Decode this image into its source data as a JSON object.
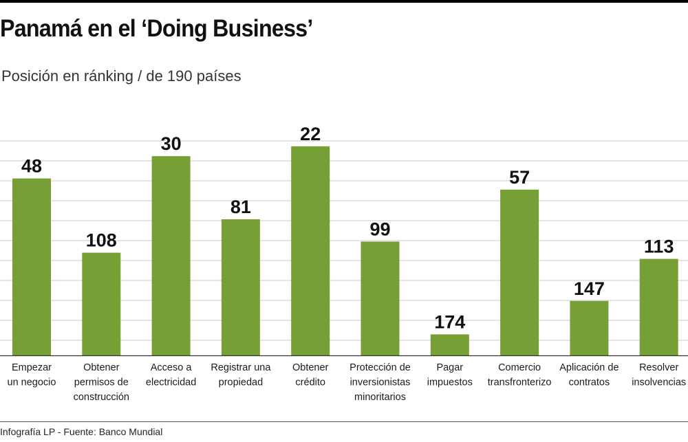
{
  "title": "Panamá en el ‘Doing Business’",
  "subtitle": "Posición en ránking / de 190 países",
  "footer": "Infografía LP  - Fuente: Banco Mundial",
  "colors": {
    "bar": "#76a035",
    "grid": "#c8c8c8",
    "axis": "#333333"
  },
  "chart_data": {
    "type": "bar",
    "categories": [
      [
        "Empezar",
        "un negocio"
      ],
      [
        "Obtener",
        "permisos de",
        "construcción"
      ],
      [
        "Acceso a",
        "electricidad"
      ],
      [
        "Registrar una",
        "propiedad"
      ],
      [
        "Obtener",
        "crédito"
      ],
      [
        "Protección de",
        "inversionistas",
        "minoritarios"
      ],
      [
        "Pagar",
        "impuestos"
      ],
      [
        "Comercio",
        "transfronterizo"
      ],
      [
        "Aplicación de",
        "contratos"
      ],
      [
        "Resolver",
        "insolvencias"
      ]
    ],
    "values": [
      48,
      108,
      30,
      81,
      22,
      99,
      174,
      57,
      147,
      113
    ],
    "scale_max": 190,
    "inverted": true,
    "grid": true,
    "legend": "none"
  }
}
